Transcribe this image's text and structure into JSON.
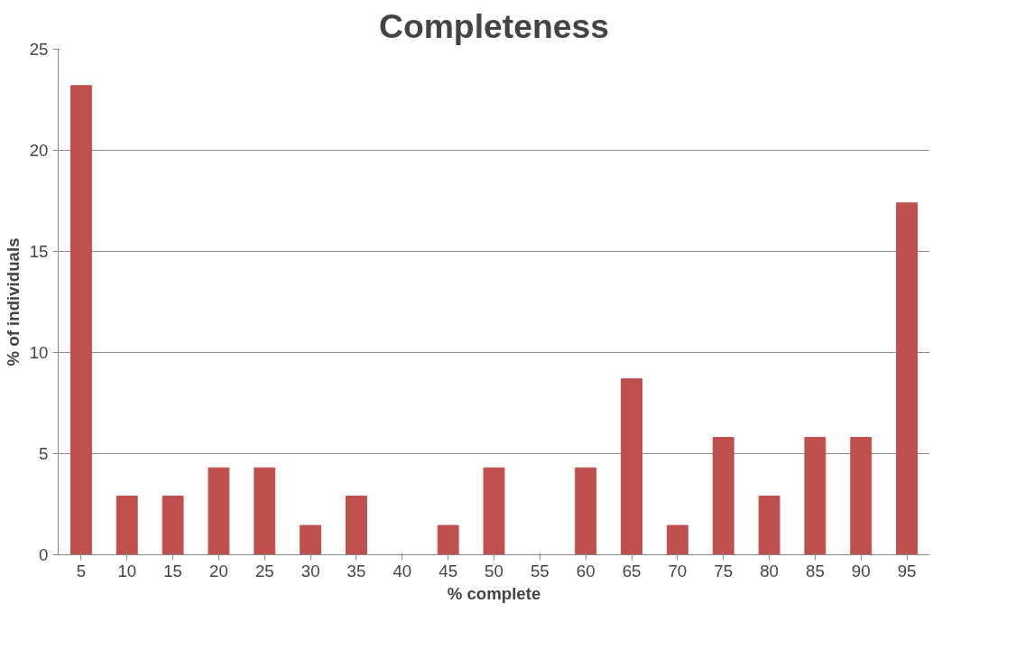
{
  "chart_data": {
    "type": "bar",
    "title": "Completeness",
    "xlabel": "% complete",
    "ylabel": "% of individuals",
    "categories": [
      "5",
      "10",
      "15",
      "20",
      "25",
      "30",
      "35",
      "40",
      "45",
      "50",
      "55",
      "60",
      "65",
      "70",
      "75",
      "80",
      "85",
      "90",
      "95"
    ],
    "values": [
      23.2,
      2.9,
      2.9,
      4.3,
      4.3,
      1.45,
      2.9,
      0,
      1.45,
      4.3,
      0,
      4.3,
      8.7,
      1.45,
      5.8,
      2.9,
      5.8,
      5.8,
      17.4
    ],
    "color": "#c0504d",
    "ylim": [
      0,
      25
    ],
    "yticks": [
      0,
      5,
      10,
      15,
      20,
      25
    ],
    "grid": "y"
  }
}
